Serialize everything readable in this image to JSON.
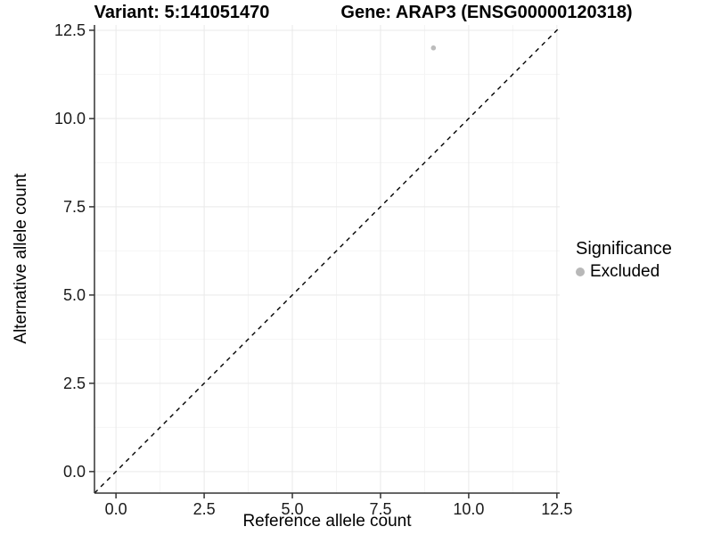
{
  "chart_data": {
    "type": "scatter",
    "title_left": "Variant: 5:141051470",
    "title_right": "Gene: ARAP3 (ENSG00000120318)",
    "xlabel": "Reference allele count",
    "ylabel": "Alternative allele count",
    "xlim": [
      -0.61,
      12.58
    ],
    "ylim": [
      -0.61,
      12.65
    ],
    "x_ticks": {
      "values": [
        0,
        2.5,
        5,
        7.5,
        10,
        12.5
      ],
      "labels": [
        "0.0",
        "2.5",
        "5.0",
        "7.5",
        "10.0",
        "12.5"
      ]
    },
    "y_ticks": {
      "values": [
        0,
        2.5,
        5,
        7.5,
        10,
        12.5
      ],
      "labels": [
        "0.0",
        "2.5",
        "5.0",
        "7.5",
        "10.0",
        "12.5"
      ]
    },
    "minor_ticks": [
      1.25,
      3.75,
      6.25,
      8.75,
      11.25
    ],
    "grid": {
      "major": true,
      "minor": true
    },
    "identity_line": {
      "slope": 1,
      "intercept": 0,
      "style": "dashed",
      "color": "#000000"
    },
    "series": [
      {
        "name": "Excluded",
        "color": "#bcbcbc",
        "points": [
          [
            9,
            12
          ]
        ]
      }
    ],
    "legend": {
      "title": "Significance",
      "position": "right",
      "items": [
        {
          "label": "Excluded",
          "color": "#b8b8b8"
        }
      ]
    },
    "colors": {
      "background": "#ffffff",
      "axis_line": "#333333",
      "tick_mark": "#333333",
      "grid_major": "#e9e9e9",
      "grid_minor": "#f4f4f4",
      "tick_text": "#1a1a1a"
    }
  }
}
